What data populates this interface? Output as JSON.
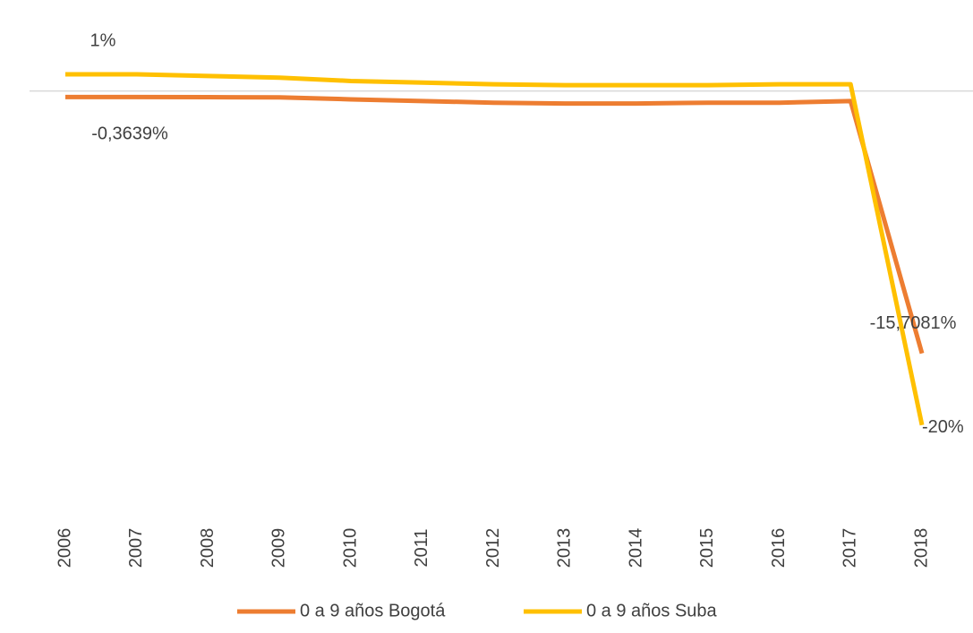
{
  "chart_data": {
    "type": "line",
    "categories": [
      "2006",
      "2007",
      "2008",
      "2009",
      "2010",
      "2011",
      "2012",
      "2013",
      "2014",
      "2015",
      "2016",
      "2017",
      "2018"
    ],
    "series": [
      {
        "name": "0 a 9 años Bogotá",
        "color": "#ed7d31",
        "values": [
          -0.3639,
          -0.36,
          -0.37,
          -0.38,
          -0.5,
          -0.6,
          -0.7,
          -0.75,
          -0.75,
          -0.7,
          -0.7,
          -0.6,
          -15.7081
        ],
        "value_labels": [
          "-0,3639%",
          null,
          null,
          null,
          null,
          null,
          null,
          null,
          null,
          null,
          null,
          null,
          "-15,7081%"
        ]
      },
      {
        "name": "0 a 9 años Suba",
        "color": "#ffc000",
        "values": [
          1,
          1,
          0.9,
          0.8,
          0.6,
          0.5,
          0.4,
          0.35,
          0.35,
          0.35,
          0.4,
          0.4,
          -20
        ],
        "value_labels": [
          "1%",
          null,
          null,
          null,
          null,
          null,
          null,
          null,
          null,
          null,
          null,
          null,
          "-20%"
        ]
      }
    ],
    "ylim": [
      -23.5,
      2.5
    ]
  }
}
